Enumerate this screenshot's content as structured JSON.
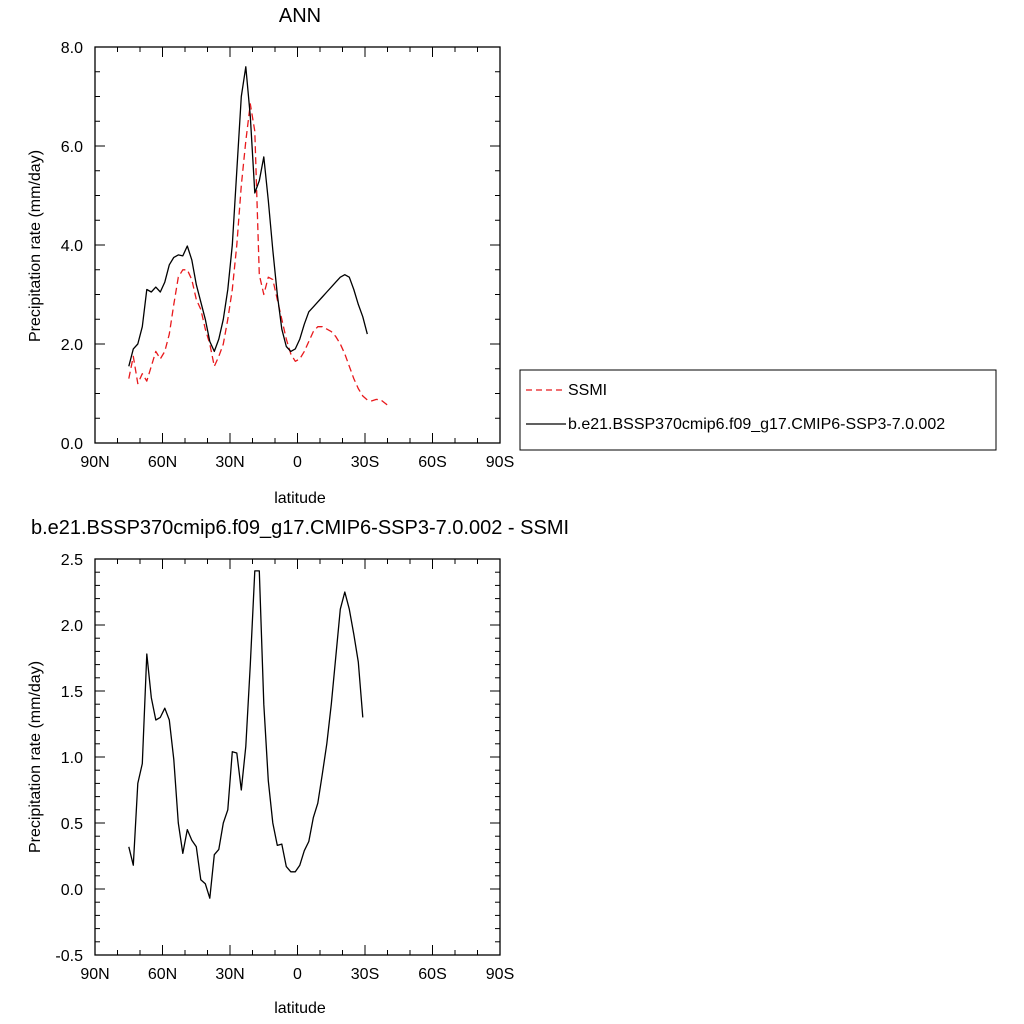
{
  "chart_data": [
    {
      "type": "line",
      "title": "ANN",
      "xlabel": "latitude",
      "ylabel": "Precipitation rate (mm/day)",
      "xlim": [
        90,
        -90
      ],
      "ylim": [
        0,
        8
      ],
      "xticks": [
        {
          "value": 90,
          "label": "90N"
        },
        {
          "value": 60,
          "label": "60N"
        },
        {
          "value": 30,
          "label": "30N"
        },
        {
          "value": 0,
          "label": "0"
        },
        {
          "value": -30,
          "label": "30S"
        },
        {
          "value": -60,
          "label": "60S"
        },
        {
          "value": -90,
          "label": "90S"
        }
      ],
      "yticks": [
        {
          "value": 0,
          "label": "0.0"
        },
        {
          "value": 2,
          "label": "2.0"
        },
        {
          "value": 4,
          "label": "4.0"
        },
        {
          "value": 6,
          "label": "6.0"
        },
        {
          "value": 8,
          "label": "8.0"
        }
      ],
      "legend_position": "right",
      "series": [
        {
          "name": "SSMI",
          "color": "#e8191c",
          "dash": "dashed",
          "points": [
            [
              75,
              1.3
            ],
            [
              73,
              1.75
            ],
            [
              71,
              1.2
            ],
            [
              69,
              1.4
            ],
            [
              67,
              1.25
            ],
            [
              65,
              1.55
            ],
            [
              63,
              1.85
            ],
            [
              61,
              1.7
            ],
            [
              59,
              1.85
            ],
            [
              57,
              2.2
            ],
            [
              55,
              2.8
            ],
            [
              53,
              3.35
            ],
            [
              51,
              3.5
            ],
            [
              49,
              3.5
            ],
            [
              47,
              3.3
            ],
            [
              45,
              2.9
            ],
            [
              43,
              2.7
            ],
            [
              41,
              2.3
            ],
            [
              39,
              2.0
            ],
            [
              37,
              1.55
            ],
            [
              35,
              1.75
            ],
            [
              33,
              2.0
            ],
            [
              31,
              2.5
            ],
            [
              29,
              3.1
            ],
            [
              27,
              4.0
            ],
            [
              25,
              5.2
            ],
            [
              23,
              6.1
            ],
            [
              21,
              6.85
            ],
            [
              19,
              6.3
            ],
            [
              17,
              3.4
            ],
            [
              15,
              3.0
            ],
            [
              13,
              3.35
            ],
            [
              11,
              3.3
            ],
            [
              9,
              2.9
            ],
            [
              7,
              2.5
            ],
            [
              5,
              2.1
            ],
            [
              3,
              1.8
            ],
            [
              1,
              1.65
            ],
            [
              -1,
              1.7
            ],
            [
              -3,
              1.85
            ],
            [
              -5,
              2.05
            ],
            [
              -7,
              2.25
            ],
            [
              -9,
              2.35
            ],
            [
              -11,
              2.35
            ],
            [
              -13,
              2.3
            ],
            [
              -15,
              2.25
            ],
            [
              -17,
              2.15
            ],
            [
              -19,
              2.0
            ],
            [
              -21,
              1.8
            ],
            [
              -23,
              1.55
            ],
            [
              -25,
              1.3
            ],
            [
              -27,
              1.1
            ],
            [
              -29,
              0.95
            ],
            [
              -31,
              0.87
            ],
            [
              -33,
              0.85
            ],
            [
              -35,
              0.88
            ],
            [
              -37,
              0.87
            ],
            [
              -39,
              0.8
            ],
            [
              -41,
              0.73
            ]
          ]
        },
        {
          "name": "b.e21.BSSP370cmip6.f09_g17.CMIP6-SSP3-7.0.002",
          "color": "#000000",
          "dash": "solid",
          "points": [
            [
              75,
              1.55
            ],
            [
              73,
              1.9
            ],
            [
              71,
              2.0
            ],
            [
              69,
              2.35
            ],
            [
              67,
              3.1
            ],
            [
              65,
              3.05
            ],
            [
              63,
              3.15
            ],
            [
              61,
              3.05
            ],
            [
              59,
              3.25
            ],
            [
              57,
              3.6
            ],
            [
              55,
              3.75
            ],
            [
              53,
              3.8
            ],
            [
              51,
              3.78
            ],
            [
              49,
              3.98
            ],
            [
              47,
              3.7
            ],
            [
              45,
              3.2
            ],
            [
              43,
              2.85
            ],
            [
              41,
              2.5
            ],
            [
              39,
              2.05
            ],
            [
              37,
              1.85
            ],
            [
              35,
              2.1
            ],
            [
              33,
              2.5
            ],
            [
              31,
              3.1
            ],
            [
              29,
              4.0
            ],
            [
              27,
              5.5
            ],
            [
              25,
              7.0
            ],
            [
              23,
              7.6
            ],
            [
              21,
              6.6
            ],
            [
              19,
              5.05
            ],
            [
              17,
              5.3
            ],
            [
              15,
              5.78
            ],
            [
              13,
              4.9
            ],
            [
              11,
              3.9
            ],
            [
              9,
              3.0
            ],
            [
              7,
              2.3
            ],
            [
              5,
              1.95
            ],
            [
              3,
              1.85
            ],
            [
              1,
              1.9
            ],
            [
              -1,
              2.1
            ],
            [
              -3,
              2.4
            ],
            [
              -5,
              2.65
            ],
            [
              -7,
              2.75
            ],
            [
              -9,
              2.85
            ],
            [
              -11,
              2.95
            ],
            [
              -13,
              3.05
            ],
            [
              -15,
              3.15
            ],
            [
              -17,
              3.25
            ],
            [
              -19,
              3.35
            ],
            [
              -21,
              3.4
            ],
            [
              -23,
              3.35
            ],
            [
              -25,
              3.1
            ],
            [
              -27,
              2.8
            ],
            [
              -29,
              2.55
            ],
            [
              -31,
              2.2
            ]
          ]
        }
      ]
    },
    {
      "type": "line",
      "title": "b.e21.BSSP370cmip6.f09_g17.CMIP6-SSP3-7.0.002 - SSMI",
      "xlabel": "latitude",
      "ylabel": "Precipitation rate (mm/day)",
      "xlim": [
        90,
        -90
      ],
      "ylim": [
        -0.5,
        2.5
      ],
      "xticks": [
        {
          "value": 90,
          "label": "90N"
        },
        {
          "value": 60,
          "label": "60N"
        },
        {
          "value": 30,
          "label": "30N"
        },
        {
          "value": 0,
          "label": "0"
        },
        {
          "value": -30,
          "label": "30S"
        },
        {
          "value": -60,
          "label": "60S"
        },
        {
          "value": -90,
          "label": "90S"
        }
      ],
      "yticks": [
        {
          "value": -0.5,
          "label": "-0.5"
        },
        {
          "value": 0,
          "label": "0.0"
        },
        {
          "value": 0.5,
          "label": "0.5"
        },
        {
          "value": 1.0,
          "label": "1.0"
        },
        {
          "value": 1.5,
          "label": "1.5"
        },
        {
          "value": 2.0,
          "label": "2.0"
        },
        {
          "value": 2.5,
          "label": "2.5"
        }
      ],
      "series": [
        {
          "color": "#000000",
          "dash": "solid",
          "points": [
            [
              75,
              0.32
            ],
            [
              73,
              0.18
            ],
            [
              71,
              0.8
            ],
            [
              69,
              0.95
            ],
            [
              67,
              1.78
            ],
            [
              65,
              1.45
            ],
            [
              63,
              1.28
            ],
            [
              61,
              1.3
            ],
            [
              59,
              1.37
            ],
            [
              57,
              1.28
            ],
            [
              55,
              0.98
            ],
            [
              53,
              0.5
            ],
            [
              51,
              0.27
            ],
            [
              49,
              0.45
            ],
            [
              47,
              0.37
            ],
            [
              45,
              0.32
            ],
            [
              43,
              0.07
            ],
            [
              41,
              0.04
            ],
            [
              39,
              -0.07
            ],
            [
              37,
              0.26
            ],
            [
              35,
              0.3
            ],
            [
              33,
              0.5
            ],
            [
              31,
              0.6
            ],
            [
              29,
              1.04
            ],
            [
              27,
              1.03
            ],
            [
              25,
              0.75
            ],
            [
              23,
              1.08
            ],
            [
              21,
              1.7
            ],
            [
              19,
              2.41
            ],
            [
              17,
              2.41
            ],
            [
              15,
              1.4
            ],
            [
              13,
              0.82
            ],
            [
              11,
              0.5
            ],
            [
              9,
              0.33
            ],
            [
              7,
              0.34
            ],
            [
              5,
              0.17
            ],
            [
              3,
              0.13
            ],
            [
              1,
              0.13
            ],
            [
              -1,
              0.18
            ],
            [
              -3,
              0.29
            ],
            [
              -5,
              0.36
            ],
            [
              -7,
              0.54
            ],
            [
              -9,
              0.65
            ],
            [
              -11,
              0.87
            ],
            [
              -13,
              1.1
            ],
            [
              -15,
              1.4
            ],
            [
              -17,
              1.76
            ],
            [
              -19,
              2.12
            ],
            [
              -21,
              2.25
            ],
            [
              -23,
              2.12
            ],
            [
              -25,
              1.93
            ],
            [
              -27,
              1.72
            ],
            [
              -29,
              1.3
            ]
          ]
        }
      ]
    }
  ]
}
